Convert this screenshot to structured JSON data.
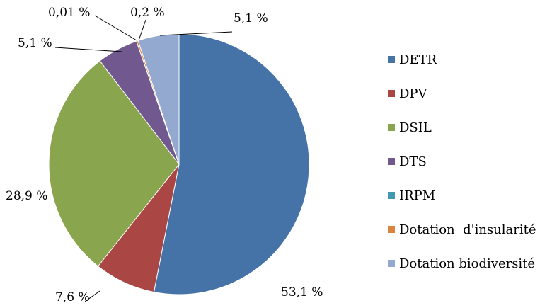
{
  "chart_data": {
    "type": "pie",
    "title": "",
    "start": "12 o'clock, clockwise",
    "categories": [
      "DETR",
      "DPV",
      "DSIL",
      "DTS",
      "IRPM",
      "Dotation  d'insularité",
      "Dotation biodiversité"
    ],
    "values": [
      53.1,
      7.6,
      28.9,
      5.1,
      0.01,
      0.2,
      5.1
    ],
    "data_labels": [
      "53,1 %",
      "7,6 %",
      "28,9 %",
      "5,1 %",
      "0,01 %",
      "0,2 %",
      "5,1 %"
    ],
    "colors": [
      "#4572a7",
      "#aa4643",
      "#89a54e",
      "#71588f",
      "#4198af",
      "#db843d",
      "#93a9cf"
    ],
    "legend_position": "right"
  }
}
